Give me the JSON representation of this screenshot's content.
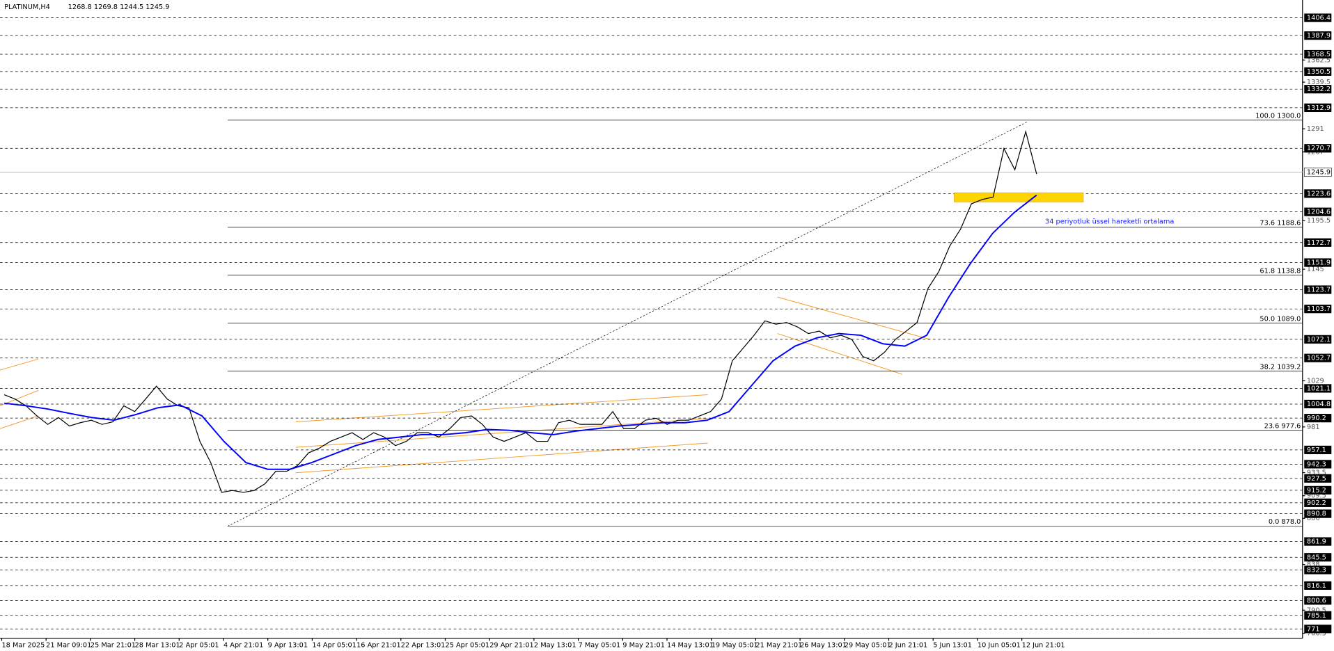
{
  "chart_data": {
    "type": "line",
    "title": "PLATINUM,H4",
    "subtitle": "1268.8 1269.8 1244.5 1245.9",
    "annotation": "34 periyotluk üssel hareketli ortalama",
    "x_labels": [
      "18 Mar 2025",
      "21 Mar 09:01",
      "25 Mar 21:01",
      "28 Mar 13:01",
      "2 Apr 05:01",
      "4 Apr 21:01",
      "9 Apr 13:01",
      "14 Apr 05:01",
      "16 Apr 21:01",
      "22 Apr 13:01",
      "25 Apr 05:01",
      "29 Apr 21:01",
      "2 May 13:01",
      "7 May 05:01",
      "9 May 21:01",
      "14 May 13:01",
      "19 May 05:01",
      "21 May 21:01",
      "26 May 13:01",
      "29 May 05:01",
      "2 Jun 21:01",
      "5 Jun 13:01",
      "10 Jun 05:01",
      "12 Jun 21:01"
    ],
    "series": [
      {
        "color": "#000000",
        "values": [
          1014.5,
          1010,
          1003,
          992.5,
          983.7,
          990.7,
          982,
          985.4,
          988,
          983.7,
          986.3,
          1003,
          997,
          1010,
          1023.4,
          1010,
          1003,
          1001,
          966,
          944,
          913,
          915,
          913,
          915,
          922,
          935,
          935,
          941,
          954,
          959,
          966,
          970.4,
          975,
          968,
          975,
          970.4,
          961.6,
          966,
          975,
          975,
          970.4,
          979.3,
          990.7,
          992.5,
          983.7,
          970.4,
          966,
          970.4,
          975,
          966,
          966,
          985.4,
          988,
          983.7,
          983.7,
          983.7,
          997,
          979.3,
          979.3,
          988,
          990,
          983.7,
          988,
          988,
          992.5,
          997,
          1010,
          1049.8,
          1063,
          1076.3,
          1091.3,
          1087.8,
          1089.6,
          1085,
          1078.1,
          1080.7,
          1073.7,
          1076.3,
          1071.9,
          1054.3,
          1049.8,
          1058.6,
          1071.9,
          1080.7,
          1089.6,
          1124.9,
          1142.5,
          1169,
          1186.6,
          1213,
          1217.5,
          1220,
          1270.5,
          1248.4,
          1288.1,
          1244
        ]
      },
      {
        "name": "34 periyotluk üssel hareketli ortalama",
        "color": "#0000ff",
        "values": [
          1005.7,
          1003,
          999.6,
          995,
          990.7,
          988,
          994,
          1001,
          1003.9,
          992.5,
          966,
          944,
          937,
          937,
          944,
          952.8,
          961.6,
          968,
          970.4,
          973,
          973,
          975,
          978.4,
          977.5,
          975,
          973,
          976.6,
          979.3,
          982,
          983.7,
          985.4,
          985.4,
          988,
          997,
          1023.4,
          1049.8,
          1065,
          1073.7,
          1078.1,
          1076.3,
          1067.5,
          1065,
          1076.3,
          1116,
          1151.3,
          1182.3,
          1204.3,
          1222
        ]
      }
    ],
    "ylim": [
      761.3,
      1424.9
    ],
    "yticks": [
      1362.5,
      1339.5,
      1291.0,
      1267.0,
      1195.5,
      1145.0,
      1029.0,
      981.0,
      933.5,
      909.5,
      886.0,
      838.0,
      790.5,
      766.5
    ],
    "levels": [
      1406.4,
      1387.9,
      1368.5,
      1350.5,
      1332.2,
      1312.9,
      1270.7,
      1223.6,
      1204.6,
      1172.7,
      1151.9,
      1123.7,
      1103.7,
      1072.1,
      1052.7,
      1021.1,
      1004.8,
      990.2,
      957.1,
      942.3,
      927.5,
      915.2,
      902.2,
      890.8,
      861.9,
      845.5,
      832.3,
      816.1,
      800.6,
      785.1,
      771.0
    ],
    "current_price": 1245.9,
    "fibonacci": [
      {
        "value": 1300.0,
        "label": "100.0 1300.0"
      },
      {
        "value": 1188.6,
        "label": "73.6 1188.6"
      },
      {
        "value": 1138.8,
        "label": "61.8 1138.8"
      },
      {
        "value": 1089.0,
        "label": "50.0 1089.0"
      },
      {
        "value": 1039.2,
        "label": "38.2 1039.2"
      },
      {
        "value": 977.6,
        "label": "23.6 977.6"
      },
      {
        "value": 878.0,
        "label": "0.0 878.0"
      }
    ],
    "zone": [
      1215.0,
      1224.5
    ],
    "zone_color": "#ffd400"
  }
}
